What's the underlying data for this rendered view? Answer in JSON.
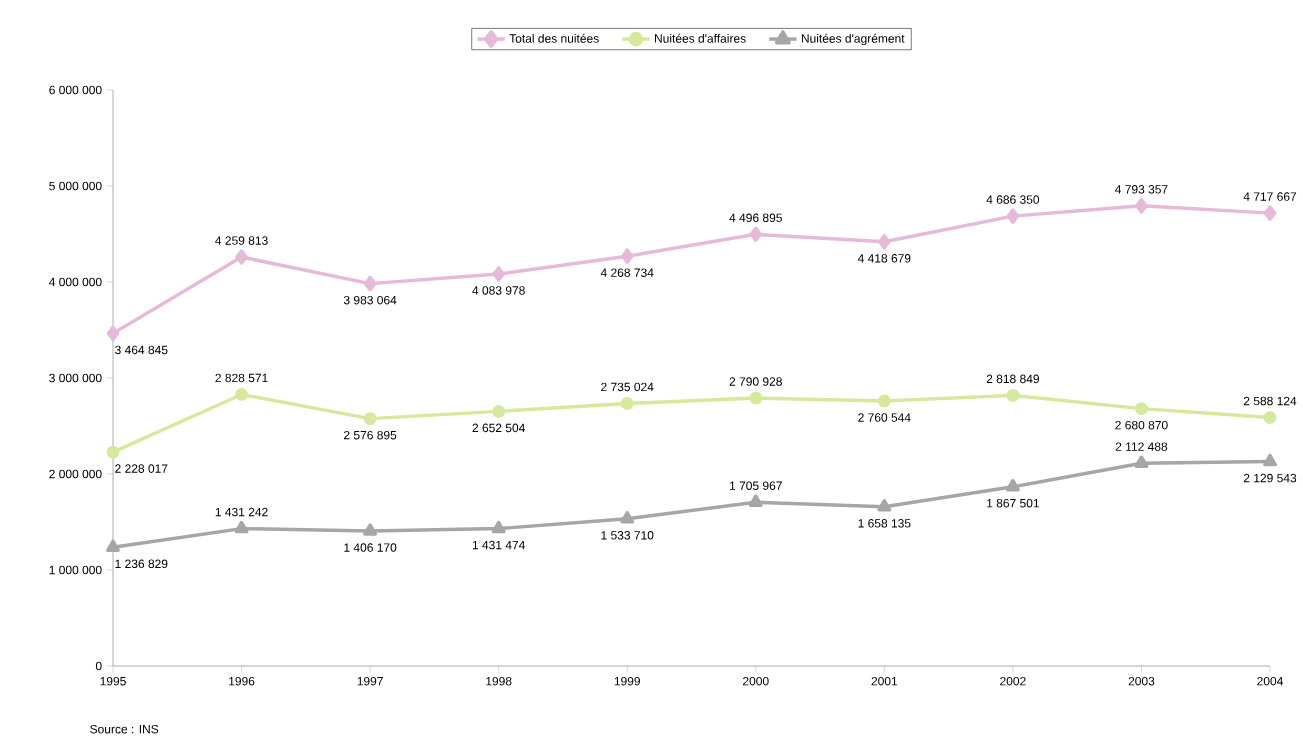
{
  "chart_data": {
    "type": "line",
    "legend": "top",
    "x": [
      1995,
      1996,
      1997,
      1998,
      1999,
      2000,
      2001,
      2002,
      2003,
      2004
    ],
    "xlim": [
      1995,
      2004
    ],
    "xticks": [
      1995,
      1996,
      1997,
      1998,
      1999,
      2000,
      2001,
      2002,
      2003,
      2004
    ],
    "ylim": [
      0,
      6000000
    ],
    "yticks": [
      {
        "value": 0,
        "label": "0"
      },
      {
        "value": 1000000,
        "label": "1 000 000"
      },
      {
        "value": 2000000,
        "label": "2 000 000"
      },
      {
        "value": 3000000,
        "label": "3 000 000"
      },
      {
        "value": 4000000,
        "label": "4 000 000"
      },
      {
        "value": 5000000,
        "label": "5 000 000"
      },
      {
        "value": 6000000,
        "label": "6 000 000"
      }
    ],
    "annotations": [
      "Source : INS"
    ],
    "series": [
      {
        "name": "Total des nuitées",
        "color": "#e6b9d8",
        "marker": "diamond",
        "values": [
          3464845,
          4259813,
          3983064,
          4083978,
          4268734,
          4496895,
          4418679,
          4686350,
          4793357,
          4717667
        ],
        "value_labels": [
          "3 464 845",
          "4 259 813",
          "3 983 064",
          "4 083 978",
          "4 268 734",
          "4 496 895",
          "4 418 679",
          "4 686 350",
          "4 793 357",
          "4 717 667"
        ]
      },
      {
        "name": "Nuitées d'affaires",
        "color": "#d6e89b",
        "marker": "circle",
        "values": [
          2228017,
          2828571,
          2576895,
          2652504,
          2735024,
          2790928,
          2760544,
          2818849,
          2680870,
          2588124
        ],
        "value_labels": [
          "2 228 017",
          "2 828 571",
          "2 576 895",
          "2 652 504",
          "2 735 024",
          "2 790 928",
          "2 760 544",
          "2 818 849",
          "2 680 870",
          "2 588 124"
        ]
      },
      {
        "name": "Nuitées d'agrément",
        "color": "#a6a6a6",
        "marker": "triangle",
        "values": [
          1236829,
          1431242,
          1406170,
          1431474,
          1533710,
          1705967,
          1658135,
          1867501,
          2112488,
          2129543
        ],
        "value_labels": [
          "1 236 829",
          "1 431 242",
          "1 406 170",
          "1 431 474",
          "1 533 710",
          "1 705 967",
          "1 658 135",
          "1 867 501",
          "2 112 488",
          "2 129 543"
        ]
      }
    ]
  }
}
